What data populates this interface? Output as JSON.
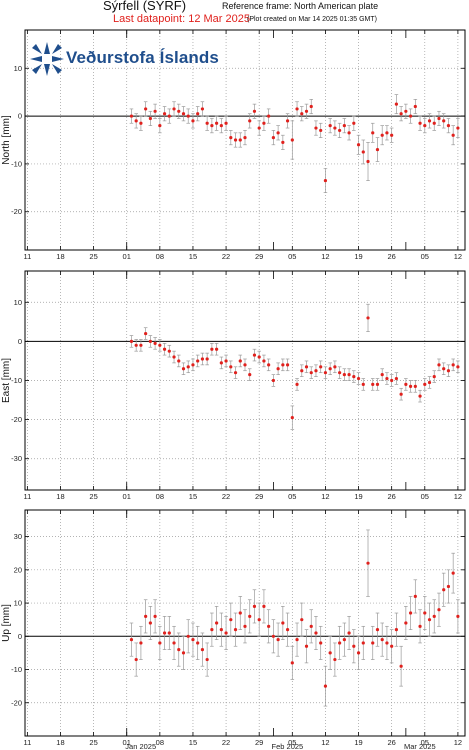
{
  "header": {
    "station": "Sýrfell (SYRF)",
    "reference": "Reference frame: North American plate",
    "last_datapoint": "Last datapoint: 12 Mar 2025",
    "plot_created": "(Plot created on Mar 14 2025 01:35 GMT)"
  },
  "logo": {
    "text": "Veðurstofa Íslands",
    "icon": "vedurstofa-star-logo"
  },
  "colors": {
    "point": "#e0211d",
    "errorbar": "#9a9a9a",
    "zero_line": "#000000",
    "grid": "#9a9a9a",
    "title_red": "#e0211d"
  },
  "x_axis": {
    "tick_labels": [
      "11",
      "18",
      "25",
      "01",
      "08",
      "15",
      "22",
      "29",
      "05",
      "12",
      "19",
      "26",
      "05",
      "12"
    ],
    "month_labels": [
      "Jan 2025",
      "Feb 2025",
      "Mar 2025"
    ],
    "range_days": [
      -21.5,
      71.5
    ]
  },
  "chart_data": [
    {
      "type": "scatter",
      "ylabel": "North [mm]",
      "ylim": [
        -28,
        18
      ],
      "yticks": [
        10,
        0,
        -10,
        -20
      ],
      "grid": true,
      "x": [
        "2025-01-02",
        "2025-01-03",
        "2025-01-04",
        "2025-01-05",
        "2025-01-06",
        "2025-01-07",
        "2025-01-08",
        "2025-01-09",
        "2025-01-10",
        "2025-01-11",
        "2025-01-12",
        "2025-01-13",
        "2025-01-14",
        "2025-01-15",
        "2025-01-16",
        "2025-01-17",
        "2025-01-18",
        "2025-01-19",
        "2025-01-20",
        "2025-01-21",
        "2025-01-22",
        "2025-01-23",
        "2025-01-24",
        "2025-01-25",
        "2025-01-26",
        "2025-01-27",
        "2025-01-28",
        "2025-01-29",
        "2025-01-30",
        "2025-01-31",
        "2025-02-01",
        "2025-02-02",
        "2025-02-03",
        "2025-02-04",
        "2025-02-05",
        "2025-02-06",
        "2025-02-07",
        "2025-02-08",
        "2025-02-09",
        "2025-02-10",
        "2025-02-11",
        "2025-02-12",
        "2025-02-13",
        "2025-02-14",
        "2025-02-15",
        "2025-02-16",
        "2025-02-17",
        "2025-02-18",
        "2025-02-19",
        "2025-02-20",
        "2025-02-21",
        "2025-02-22",
        "2025-02-23",
        "2025-02-24",
        "2025-02-25",
        "2025-02-26",
        "2025-02-27",
        "2025-02-28",
        "2025-03-01",
        "2025-03-02",
        "2025-03-03",
        "2025-03-04",
        "2025-03-05",
        "2025-03-06",
        "2025-03-07",
        "2025-03-08",
        "2025-03-09",
        "2025-03-10",
        "2025-03-11",
        "2025-03-12"
      ],
      "values": [
        0,
        -1,
        -1.5,
        1.5,
        -0.5,
        1,
        -2,
        0.5,
        0,
        1.5,
        1,
        0.5,
        0,
        -1,
        0.5,
        1.5,
        -1.5,
        -2,
        -1.5,
        -2,
        -1.5,
        -4.5,
        -5,
        -5,
        -4.5,
        -1,
        1,
        -2.5,
        -1.5,
        0,
        -4.5,
        -3.5,
        -5.5,
        -1,
        -5,
        1.5,
        0.5,
        1,
        2,
        -2.5,
        -3,
        -13.5,
        -2,
        -2.5,
        -3,
        -2,
        -3.5,
        -1.5,
        -6,
        -7.5,
        -9.5,
        -3.5,
        -7,
        -4,
        -3.5,
        -4,
        2.5,
        0.5,
        1,
        0,
        2,
        -1.5,
        -2,
        -1,
        -1.5,
        -0.5,
        -1,
        -2,
        -4,
        -2.5
      ],
      "errors": [
        1.5,
        1.5,
        1.5,
        1.5,
        1.5,
        1.5,
        1.5,
        1.5,
        1.5,
        1.5,
        1.5,
        1.5,
        1.5,
        1.5,
        1.5,
        1.5,
        1.5,
        1.5,
        1.5,
        1.5,
        1.5,
        1.5,
        1.5,
        1.5,
        1.5,
        1.5,
        1.5,
        1.5,
        1.5,
        1.5,
        1.5,
        1.5,
        1.5,
        1.5,
        4,
        1.5,
        1.5,
        1.5,
        1.5,
        1.5,
        1.5,
        2.5,
        1.5,
        1.5,
        1.5,
        1.5,
        1.5,
        1.5,
        2,
        2.5,
        4,
        2,
        2.5,
        2,
        1.5,
        1.5,
        2,
        1.5,
        1.5,
        1.5,
        1.5,
        1.5,
        1.5,
        1.5,
        1.5,
        1.5,
        1.5,
        1.5,
        2,
        2
      ]
    },
    {
      "type": "scatter",
      "ylabel": "East [mm]",
      "ylim": [
        -38,
        18
      ],
      "yticks": [
        10,
        0,
        -10,
        -20,
        -30
      ],
      "grid": true,
      "x": [
        "2025-01-02",
        "2025-01-03",
        "2025-01-04",
        "2025-01-05",
        "2025-01-06",
        "2025-01-07",
        "2025-01-08",
        "2025-01-09",
        "2025-01-10",
        "2025-01-11",
        "2025-01-12",
        "2025-01-13",
        "2025-01-14",
        "2025-01-15",
        "2025-01-16",
        "2025-01-17",
        "2025-01-18",
        "2025-01-19",
        "2025-01-20",
        "2025-01-21",
        "2025-01-22",
        "2025-01-23",
        "2025-01-24",
        "2025-01-25",
        "2025-01-26",
        "2025-01-27",
        "2025-01-28",
        "2025-01-29",
        "2025-01-30",
        "2025-01-31",
        "2025-02-01",
        "2025-02-02",
        "2025-02-03",
        "2025-02-04",
        "2025-02-05",
        "2025-02-06",
        "2025-02-07",
        "2025-02-08",
        "2025-02-09",
        "2025-02-10",
        "2025-02-11",
        "2025-02-12",
        "2025-02-13",
        "2025-02-14",
        "2025-02-15",
        "2025-02-16",
        "2025-02-17",
        "2025-02-18",
        "2025-02-19",
        "2025-02-20",
        "2025-02-21",
        "2025-02-22",
        "2025-02-23",
        "2025-02-24",
        "2025-02-25",
        "2025-02-26",
        "2025-02-27",
        "2025-02-28",
        "2025-03-01",
        "2025-03-02",
        "2025-03-03",
        "2025-03-04",
        "2025-03-05",
        "2025-03-06",
        "2025-03-07",
        "2025-03-08",
        "2025-03-09",
        "2025-03-10",
        "2025-03-11",
        "2025-03-12"
      ],
      "values": [
        0,
        -1,
        -1,
        2,
        0,
        -0.5,
        -1,
        -2,
        -2.5,
        -4,
        -5,
        -7,
        -6.5,
        -6,
        -5,
        -4.5,
        -4.5,
        -2,
        -2,
        -5.5,
        -5,
        -6.5,
        -8,
        -5,
        -6,
        -8.5,
        -3.5,
        -4,
        -5,
        -6,
        -10,
        -7,
        -6,
        -6,
        -19.5,
        -11,
        -7.5,
        -6.5,
        -8,
        -7.5,
        -6.5,
        -8,
        -7,
        -6.5,
        -8,
        -8.5,
        -8.5,
        -9,
        -9.5,
        -11,
        6,
        -11,
        -11,
        -8.5,
        -9.5,
        -10,
        -9.5,
        -13.5,
        -11,
        -11.5,
        -11.5,
        -14,
        -11,
        -10.5,
        -9,
        -6,
        -7,
        -7.5,
        -6,
        -6.5
      ],
      "errors": [
        1.5,
        1.5,
        1.5,
        1.5,
        1.5,
        1.5,
        1.5,
        1.5,
        1.5,
        1.5,
        1.5,
        1.5,
        1.5,
        1.5,
        1.5,
        1.5,
        1.5,
        1.5,
        1.5,
        1.5,
        1.5,
        1.5,
        1.5,
        1.5,
        1.5,
        1.5,
        1.5,
        1.5,
        1.5,
        1.5,
        1.5,
        1.5,
        1.5,
        1.5,
        3,
        1.5,
        1.5,
        1.5,
        1.5,
        1.5,
        1.5,
        1.5,
        1.5,
        1.5,
        1.5,
        1.5,
        1.5,
        1.5,
        1.5,
        1.5,
        3.5,
        1.5,
        1.5,
        1.5,
        1.5,
        1.5,
        1.5,
        1.5,
        1.5,
        1.5,
        1.5,
        1.5,
        1.5,
        1.5,
        1.5,
        1.5,
        1.5,
        1.5,
        1.5,
        1.5
      ]
    },
    {
      "type": "scatter",
      "ylabel": "Up [mm]",
      "ylim": [
        -30,
        38
      ],
      "yticks": [
        30,
        20,
        10,
        0,
        -10,
        -20
      ],
      "grid": true,
      "x": [
        "2025-01-02",
        "2025-01-03",
        "2025-01-04",
        "2025-01-05",
        "2025-01-06",
        "2025-01-07",
        "2025-01-08",
        "2025-01-09",
        "2025-01-10",
        "2025-01-11",
        "2025-01-12",
        "2025-01-13",
        "2025-01-14",
        "2025-01-15",
        "2025-01-16",
        "2025-01-17",
        "2025-01-18",
        "2025-01-19",
        "2025-01-20",
        "2025-01-21",
        "2025-01-22",
        "2025-01-23",
        "2025-01-24",
        "2025-01-25",
        "2025-01-26",
        "2025-01-27",
        "2025-01-28",
        "2025-01-29",
        "2025-01-30",
        "2025-01-31",
        "2025-02-01",
        "2025-02-02",
        "2025-02-03",
        "2025-02-04",
        "2025-02-05",
        "2025-02-06",
        "2025-02-07",
        "2025-02-08",
        "2025-02-09",
        "2025-02-10",
        "2025-02-11",
        "2025-02-12",
        "2025-02-13",
        "2025-02-14",
        "2025-02-15",
        "2025-02-16",
        "2025-02-17",
        "2025-02-18",
        "2025-02-19",
        "2025-02-20",
        "2025-02-21",
        "2025-02-22",
        "2025-02-23",
        "2025-02-24",
        "2025-02-25",
        "2025-02-26",
        "2025-02-27",
        "2025-02-28",
        "2025-03-01",
        "2025-03-02",
        "2025-03-03",
        "2025-03-04",
        "2025-03-05",
        "2025-03-06",
        "2025-03-07",
        "2025-03-08",
        "2025-03-09",
        "2025-03-10",
        "2025-03-11",
        "2025-03-12"
      ],
      "values": [
        -1,
        -7,
        -2,
        6,
        4,
        6,
        -2,
        1,
        1,
        -2,
        -4,
        -5,
        0,
        -1,
        -2,
        -4,
        -7,
        2,
        4,
        2,
        1,
        5,
        2,
        7,
        3,
        6,
        9,
        5,
        9,
        3,
        0,
        -1,
        4,
        2,
        -8,
        -1,
        5,
        -3,
        3,
        1,
        -2,
        -15,
        -5,
        -7,
        -2,
        -1,
        1,
        -3,
        -5,
        -2,
        22,
        -2,
        2,
        -1,
        -2,
        -3,
        2,
        -9,
        4,
        7,
        12,
        3,
        7,
        5,
        6,
        8,
        14,
        15,
        19,
        6
      ],
      "errors": [
        5,
        5,
        5,
        5,
        5,
        5,
        5,
        5,
        5,
        5,
        5,
        5,
        5,
        5,
        5,
        5,
        5,
        5,
        5,
        5,
        5,
        5,
        5,
        5,
        5,
        5,
        5,
        5,
        5,
        5,
        5,
        5,
        5,
        5,
        5,
        5,
        5,
        5,
        5,
        5,
        5,
        6,
        5,
        5,
        5,
        5,
        5,
        5,
        5,
        5,
        10,
        5,
        5,
        5,
        5,
        5,
        5,
        6,
        5,
        5,
        5,
        5,
        5,
        5,
        5,
        5,
        5,
        5,
        6,
        5
      ]
    }
  ]
}
